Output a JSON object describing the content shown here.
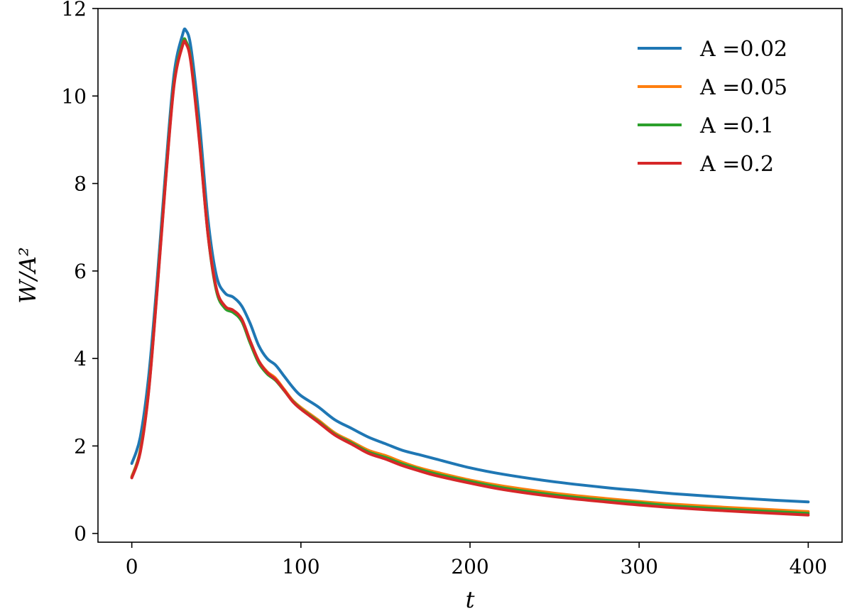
{
  "chart_data": {
    "type": "line",
    "title": "",
    "xlabel": "t",
    "ylabel": "W/A²",
    "xlim": [
      -20,
      420
    ],
    "ylim": [
      -0.2,
      12.0
    ],
    "xticks": [
      0,
      100,
      200,
      300,
      400
    ],
    "yticks": [
      0,
      2,
      4,
      6,
      8,
      10,
      12
    ],
    "grid": false,
    "legend_position": "top-right",
    "x": [
      0,
      5,
      10,
      15,
      20,
      25,
      30,
      32,
      35,
      40,
      45,
      50,
      55,
      60,
      65,
      70,
      75,
      80,
      85,
      90,
      95,
      100,
      110,
      120,
      130,
      140,
      150,
      160,
      170,
      180,
      200,
      220,
      250,
      280,
      300,
      320,
      350,
      380,
      400
    ],
    "series": [
      {
        "name": "A =0.02",
        "color": "#1f77b4",
        "values": [
          1.6,
          2.2,
          3.6,
          5.8,
          8.3,
          10.5,
          11.4,
          11.5,
          11.1,
          9.4,
          7.2,
          5.9,
          5.5,
          5.4,
          5.2,
          4.8,
          4.3,
          4.0,
          3.85,
          3.6,
          3.35,
          3.15,
          2.9,
          2.6,
          2.4,
          2.2,
          2.05,
          1.9,
          1.8,
          1.7,
          1.5,
          1.35,
          1.18,
          1.05,
          0.98,
          0.91,
          0.83,
          0.76,
          0.72
        ]
      },
      {
        "name": "A =0.05",
        "color": "#ff7f0e",
        "values": [
          1.3,
          1.9,
          3.3,
          5.6,
          8.1,
          10.3,
          11.2,
          11.25,
          10.8,
          9.0,
          6.9,
          5.6,
          5.2,
          5.1,
          4.9,
          4.4,
          3.95,
          3.7,
          3.55,
          3.3,
          3.05,
          2.88,
          2.6,
          2.3,
          2.1,
          1.9,
          1.78,
          1.63,
          1.5,
          1.4,
          1.22,
          1.08,
          0.92,
          0.8,
          0.73,
          0.67,
          0.6,
          0.54,
          0.5
        ]
      },
      {
        "name": "A =0.1",
        "color": "#2ca02c",
        "values": [
          1.28,
          1.88,
          3.28,
          5.6,
          8.1,
          10.3,
          11.2,
          11.25,
          10.8,
          9.0,
          6.85,
          5.55,
          5.15,
          5.05,
          4.85,
          4.35,
          3.9,
          3.65,
          3.5,
          3.27,
          3.03,
          2.85,
          2.57,
          2.27,
          2.07,
          1.86,
          1.74,
          1.59,
          1.47,
          1.36,
          1.19,
          1.04,
          0.88,
          0.76,
          0.7,
          0.63,
          0.56,
          0.5,
          0.46
        ]
      },
      {
        "name": "A =0.2",
        "color": "#d62728",
        "values": [
          1.27,
          1.85,
          3.25,
          5.55,
          8.05,
          10.25,
          11.15,
          11.2,
          10.75,
          8.95,
          6.85,
          5.6,
          5.2,
          5.1,
          4.9,
          4.4,
          3.95,
          3.68,
          3.52,
          3.28,
          3.02,
          2.84,
          2.55,
          2.25,
          2.04,
          1.83,
          1.7,
          1.55,
          1.43,
          1.32,
          1.15,
          1.0,
          0.84,
          0.72,
          0.65,
          0.59,
          0.52,
          0.46,
          0.42
        ]
      }
    ]
  }
}
